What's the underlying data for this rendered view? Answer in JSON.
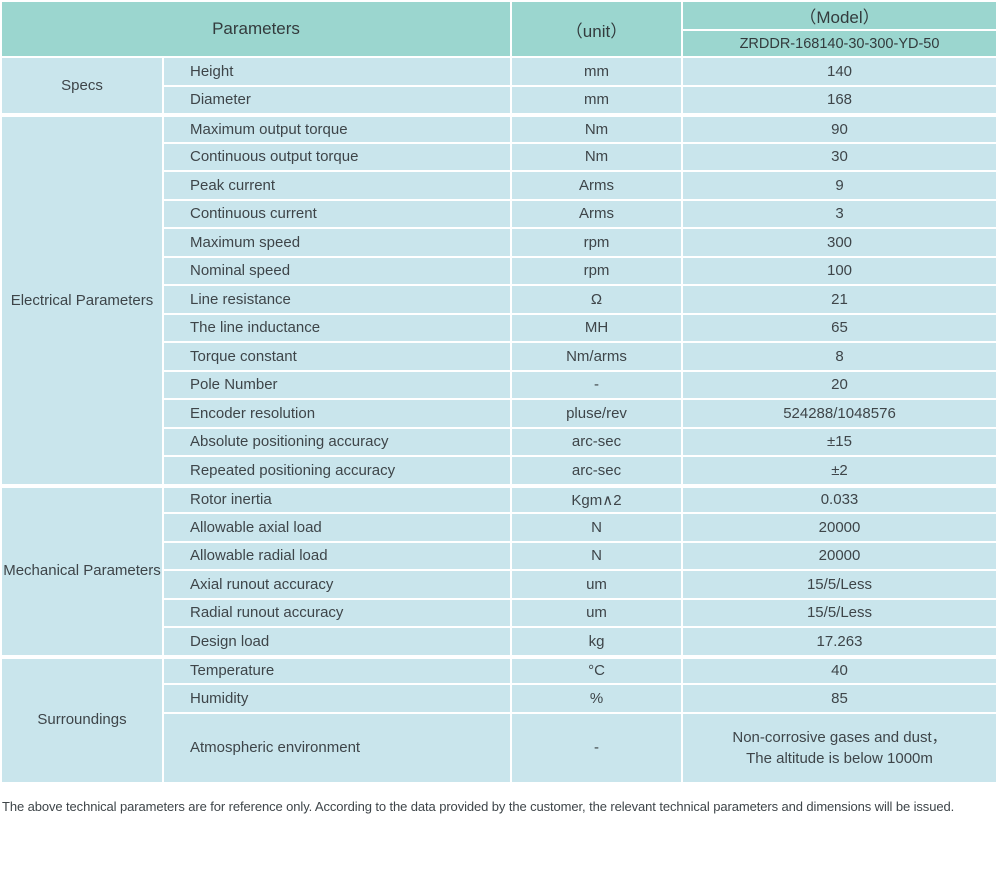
{
  "table": {
    "header": {
      "parameters_label": "Parameters",
      "unit_label": "（unit）",
      "model_label": "（Model）",
      "model_value": "ZRDDR-168140-30-300-YD-50"
    },
    "groups": [
      {
        "name": "Specs",
        "rows": [
          {
            "param": "Height",
            "unit": "mm",
            "value": "140"
          },
          {
            "param": "Diameter",
            "unit": "mm",
            "value": "168"
          }
        ]
      },
      {
        "name": "Electrical Parameters",
        "rows": [
          {
            "param": "Maximum output torque",
            "unit": "Nm",
            "value": "90"
          },
          {
            "param": "Continuous output torque",
            "unit": "Nm",
            "value": "30"
          },
          {
            "param": "Peak current",
            "unit": "Arms",
            "value": "9"
          },
          {
            "param": "Continuous current",
            "unit": "Arms",
            "value": "3"
          },
          {
            "param": "Maximum speed",
            "unit": "rpm",
            "value": "300"
          },
          {
            "param": "Nominal speed",
            "unit": "rpm",
            "value": "100"
          },
          {
            "param": "Line resistance",
            "unit": "Ω",
            "value": "21"
          },
          {
            "param": "The line inductance",
            "unit": "MH",
            "value": "65"
          },
          {
            "param": "Torque constant",
            "unit": "Nm/arms",
            "value": "8"
          },
          {
            "param": "Pole Number",
            "unit": "-",
            "value": "20"
          },
          {
            "param": "Encoder resolution",
            "unit": "pluse/rev",
            "value": "524288/1048576"
          },
          {
            "param": "Absolute positioning accuracy",
            "unit": "arc-sec",
            "value": "±15"
          },
          {
            "param": "Repeated positioning accuracy",
            "unit": "arc-sec",
            "value": "±2"
          }
        ]
      },
      {
        "name": "Mechanical Parameters",
        "rows": [
          {
            "param": "Rotor inertia",
            "unit": "Kgm∧2",
            "value": "0.033"
          },
          {
            "param": "Allowable axial load",
            "unit": "N",
            "value": "20000"
          },
          {
            "param": "Allowable radial load",
            "unit": "N",
            "value": "20000"
          },
          {
            "param": "Axial runout accuracy",
            "unit": "um",
            "value": "15/5/Less"
          },
          {
            "param": "Radial runout accuracy",
            "unit": "um",
            "value": "15/5/Less"
          },
          {
            "param": "Design load",
            "unit": "kg",
            "value": "17.263"
          }
        ]
      },
      {
        "name": "Surroundings",
        "rows": [
          {
            "param": "Temperature",
            "unit": "°C",
            "value": "40"
          },
          {
            "param": "Humidity",
            "unit": "%",
            "value": "85"
          },
          {
            "param": "Atmospheric environment",
            "unit": "-",
            "value": "Non-corrosive gases and dust，\nThe altitude is below 1000m",
            "tall": true
          }
        ]
      }
    ],
    "footer_note": "The above technical parameters are for reference only. According to the data provided by the customer, the relevant technical parameters and dimensions will be issued."
  },
  "colors": {
    "header_bg": "#9bd6cf",
    "cell_bg": "#c9e5ec",
    "separator": "#ffffff",
    "text": "#3e4549"
  }
}
